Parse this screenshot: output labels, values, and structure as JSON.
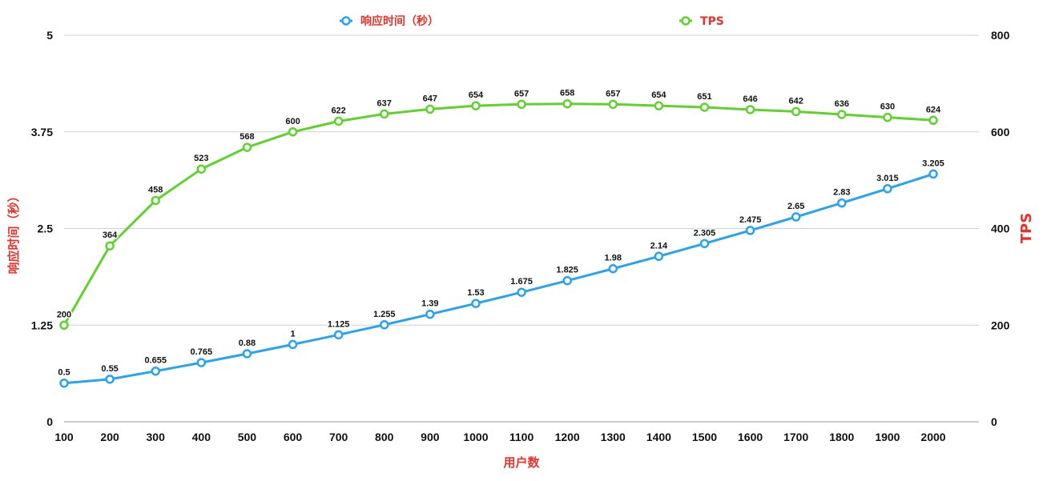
{
  "chart_data": {
    "type": "line",
    "categories": [
      "100",
      "200",
      "300",
      "400",
      "500",
      "600",
      "700",
      "800",
      "900",
      "1000",
      "1100",
      "1200",
      "1300",
      "1400",
      "1500",
      "1600",
      "1700",
      "1800",
      "1900",
      "2000"
    ],
    "xlabel": "用户数",
    "ylabel_left": "响应时间（秒）",
    "ylabel_right": "TPS",
    "ylim_left": [
      0,
      5
    ],
    "ylim_right": [
      0,
      800
    ],
    "yticks_left": [
      "0",
      "1.25",
      "2.5",
      "3.75",
      "5"
    ],
    "yticks_right": [
      "0",
      "200",
      "400",
      "600",
      "800"
    ],
    "grid": true,
    "legend_position": "top-center",
    "series": [
      {
        "name": "响应时间（秒）",
        "axis": "left",
        "color": "#29a3ef",
        "values": [
          0.5,
          0.55,
          0.655,
          0.765,
          0.88,
          1,
          1.125,
          1.255,
          1.39,
          1.53,
          1.675,
          1.825,
          1.98,
          2.14,
          2.305,
          2.475,
          2.65,
          2.83,
          3.015,
          3.205
        ],
        "labels": [
          "0.5",
          "0.55",
          "0.655",
          "0.765",
          "0.88",
          "1",
          "1.125",
          "1.255",
          "1.39",
          "1.53",
          "1.675",
          "1.825",
          "1.98",
          "2.14",
          "2.305",
          "2.475",
          "2.65",
          "2.83",
          "3.015",
          "3.205"
        ]
      },
      {
        "name": "TPS",
        "axis": "right",
        "color": "#5fd22e",
        "values": [
          200,
          364,
          458,
          523,
          568,
          600,
          622,
          637,
          647,
          654,
          657,
          658,
          657,
          654,
          651,
          646,
          642,
          636,
          630,
          624
        ],
        "labels": [
          "200",
          "364",
          "458",
          "523",
          "568",
          "600",
          "622",
          "637",
          "647",
          "654",
          "657",
          "658",
          "657",
          "654",
          "651",
          "646",
          "642",
          "636",
          "630",
          "624"
        ]
      }
    ]
  },
  "colors": {
    "axis_title": "#e5332a",
    "grid": "#d0d0d0",
    "axis_line": "#999999",
    "text": "#111111"
  }
}
